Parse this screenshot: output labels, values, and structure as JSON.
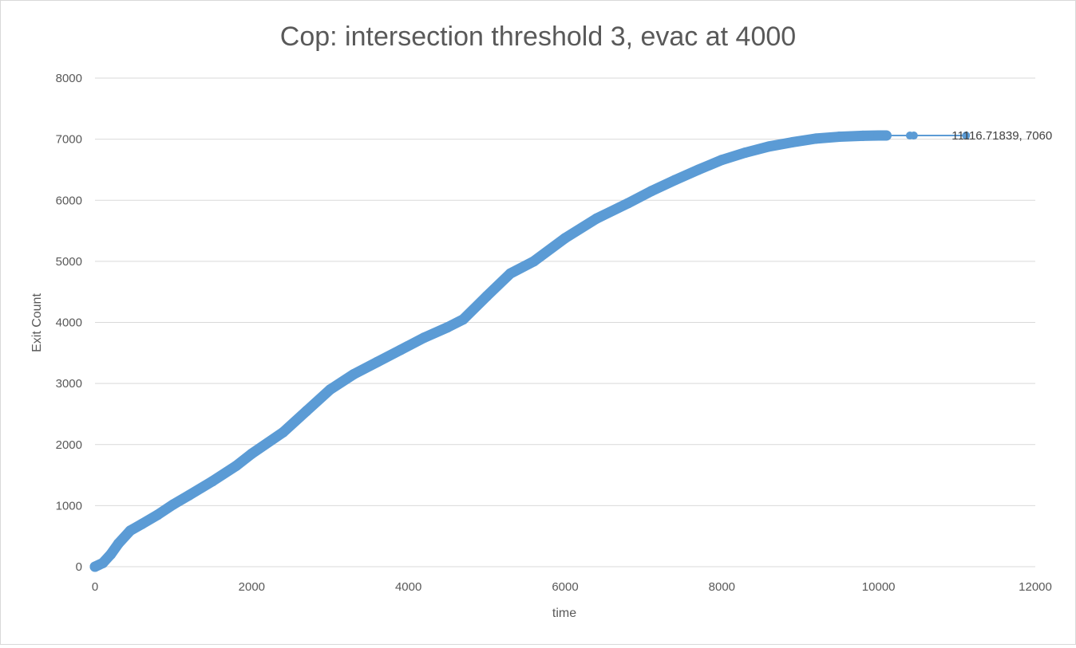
{
  "chart_data": {
    "type": "scatter",
    "title": "Cop: intersection threshold 3, evac at 4000",
    "xlabel": "time",
    "ylabel": "Exit Count",
    "xlim": [
      0,
      12000
    ],
    "ylim": [
      0,
      8000
    ],
    "x_ticks": [
      "0",
      "2000",
      "4000",
      "6000",
      "8000",
      "10000",
      "12000"
    ],
    "y_ticks": [
      "0",
      "1000",
      "2000",
      "3000",
      "4000",
      "5000",
      "6000",
      "7000",
      "8000"
    ],
    "grid": true,
    "legend": "none",
    "series": [
      {
        "name": "Exit Count",
        "color": "#5b9bd5",
        "x": [
          0,
          100,
          200,
          300,
          450,
          600,
          800,
          1000,
          1200,
          1500,
          1800,
          2000,
          2400,
          2700,
          3000,
          3300,
          3600,
          3900,
          4200,
          4500,
          4700,
          5000,
          5300,
          5600,
          6000,
          6400,
          6800,
          7100,
          7400,
          7700,
          8000,
          8300,
          8600,
          8900,
          9200,
          9500,
          9800,
          10000,
          10100,
          10400,
          10450,
          11116.71839
        ],
        "y": [
          0,
          60,
          200,
          380,
          590,
          700,
          850,
          1020,
          1170,
          1400,
          1650,
          1850,
          2200,
          2550,
          2900,
          3150,
          3350,
          3550,
          3750,
          3920,
          4050,
          4430,
          4800,
          5000,
          5380,
          5700,
          5950,
          6150,
          6330,
          6500,
          6660,
          6780,
          6880,
          6950,
          7010,
          7040,
          7055,
          7060,
          7060,
          7060,
          7060,
          7060
        ]
      }
    ],
    "annotations": [
      {
        "text": "11116.71839, 7060",
        "x": 11116.71839,
        "y": 7060
      }
    ]
  }
}
